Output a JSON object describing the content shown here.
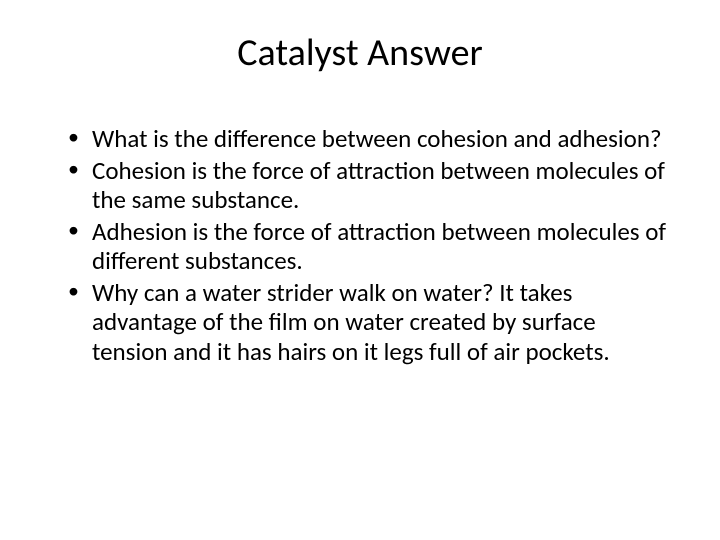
{
  "slide": {
    "title": "Catalyst Answer",
    "title_fontsize": 38,
    "title_color": "#000000",
    "title_align": "center",
    "background_color": "#ffffff",
    "bullets": [
      "What is the difference between cohesion and adhesion?",
      "Cohesion is the force of attraction between molecules of the same substance.",
      "Adhesion is the force of attraction between molecules of different substances.",
      "Why can a water strider walk on water?  It takes advantage of the film on water created by surface tension and it has hairs on it legs full of air pockets."
    ],
    "bullet_fontsize": 25,
    "bullet_color": "#000000",
    "bullet_marker": "•",
    "font_family": "Calibri"
  }
}
